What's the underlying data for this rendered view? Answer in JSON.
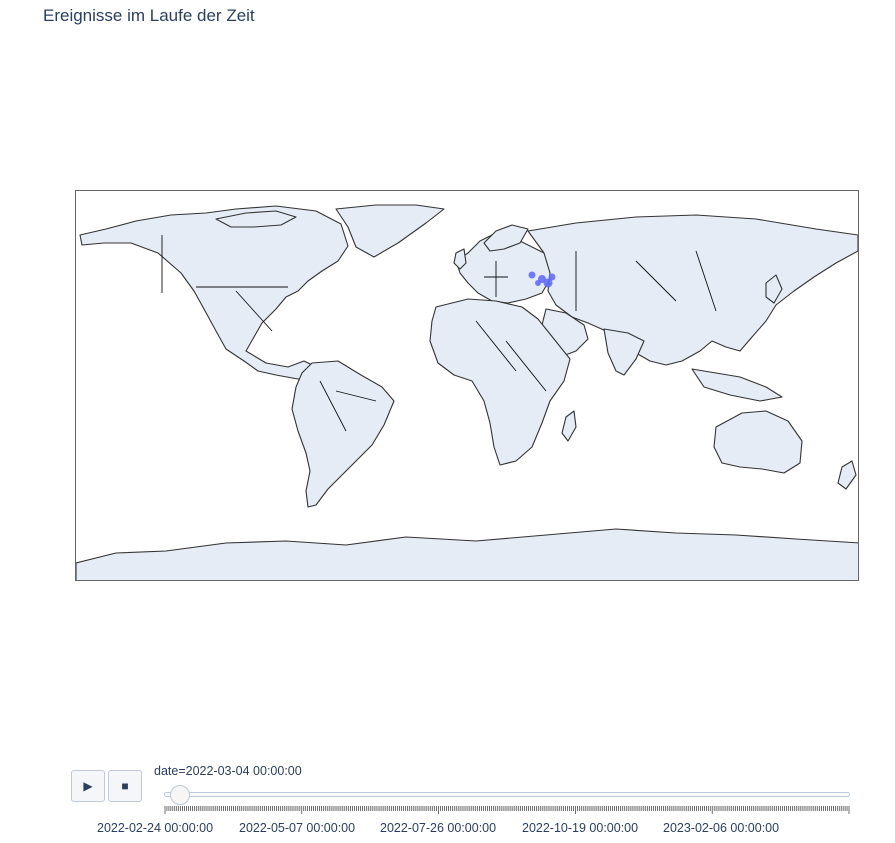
{
  "title": "Ereignisse im Laufe der Zeit",
  "map": {
    "projection": "equirectangular",
    "land_color": "#e5ecf6",
    "border_color": "#333333",
    "marker_color": "#636efa",
    "highlighted_region": "Ukraine"
  },
  "controls": {
    "play_icon": "play-icon",
    "stop_icon": "stop-icon"
  },
  "slider": {
    "current_label": "date=2022-03-04 00:00:00",
    "current_value": "2022-03-04 00:00:00",
    "ticks": [
      "2022-02-24 00:00:00",
      "2022-05-07 00:00:00",
      "2022-07-26 00:00:00",
      "2022-10-19 00:00:00",
      "2023-02-06 00:00:00"
    ]
  }
}
